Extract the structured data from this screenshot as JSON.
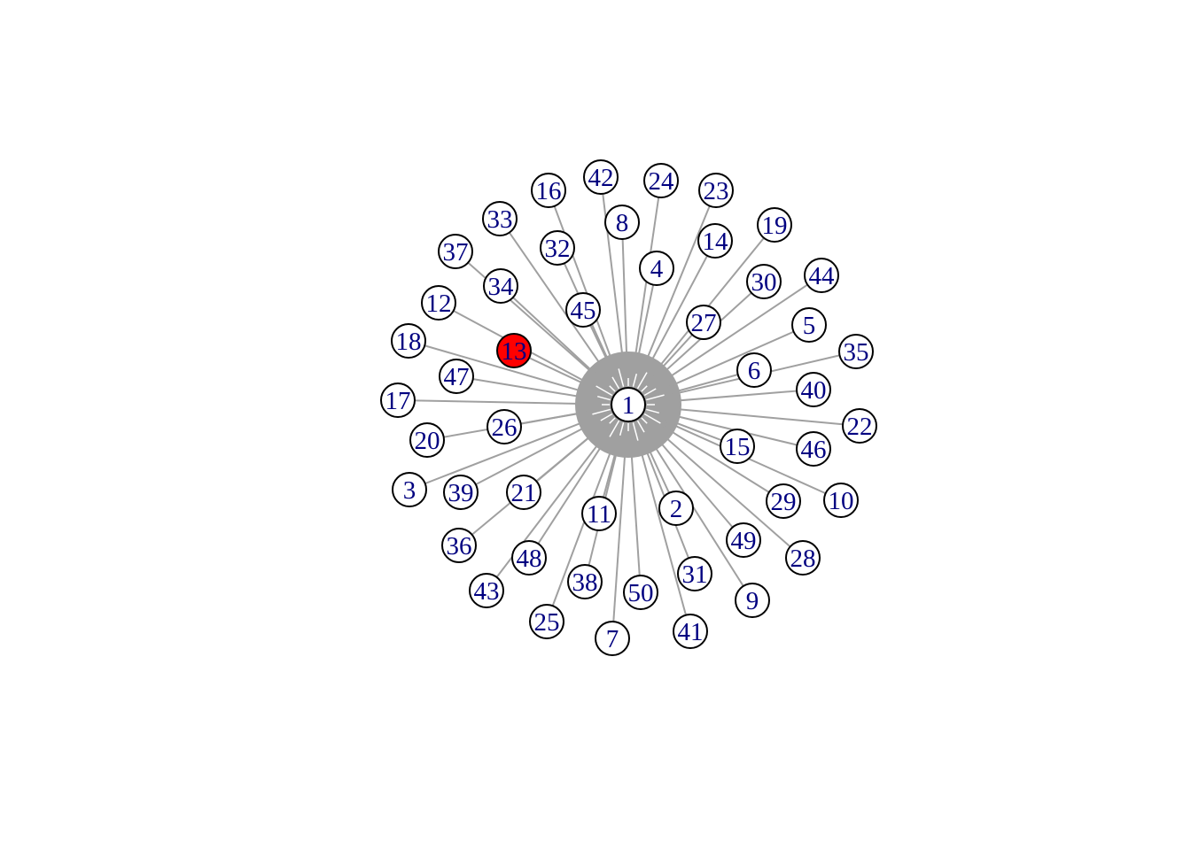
{
  "graph": {
    "type": "star",
    "center": "1",
    "highlighted": "13",
    "nodes": [
      "1",
      "2",
      "3",
      "4",
      "5",
      "6",
      "7",
      "8",
      "9",
      "10",
      "11",
      "12",
      "13",
      "14",
      "15",
      "16",
      "17",
      "18",
      "19",
      "20",
      "21",
      "22",
      "23",
      "24",
      "25",
      "26",
      "27",
      "28",
      "29",
      "30",
      "31",
      "32",
      "33",
      "34",
      "35",
      "36",
      "37",
      "38",
      "39",
      "40",
      "41",
      "42",
      "43",
      "44",
      "45",
      "46",
      "47",
      "48",
      "49",
      "50"
    ],
    "edges": [
      [
        "1",
        "2"
      ],
      [
        "1",
        "3"
      ],
      [
        "1",
        "4"
      ],
      [
        "1",
        "5"
      ],
      [
        "1",
        "6"
      ],
      [
        "1",
        "7"
      ],
      [
        "1",
        "8"
      ],
      [
        "1",
        "9"
      ],
      [
        "1",
        "10"
      ],
      [
        "1",
        "11"
      ],
      [
        "1",
        "12"
      ],
      [
        "1",
        "13"
      ],
      [
        "1",
        "14"
      ],
      [
        "1",
        "15"
      ],
      [
        "1",
        "16"
      ],
      [
        "1",
        "17"
      ],
      [
        "1",
        "18"
      ],
      [
        "1",
        "19"
      ],
      [
        "1",
        "20"
      ],
      [
        "1",
        "21"
      ],
      [
        "1",
        "22"
      ],
      [
        "1",
        "23"
      ],
      [
        "1",
        "24"
      ],
      [
        "1",
        "25"
      ],
      [
        "1",
        "26"
      ],
      [
        "1",
        "27"
      ],
      [
        "1",
        "28"
      ],
      [
        "1",
        "29"
      ],
      [
        "1",
        "30"
      ],
      [
        "1",
        "31"
      ],
      [
        "1",
        "32"
      ],
      [
        "1",
        "33"
      ],
      [
        "1",
        "34"
      ],
      [
        "1",
        "35"
      ],
      [
        "1",
        "36"
      ],
      [
        "1",
        "37"
      ],
      [
        "1",
        "38"
      ],
      [
        "1",
        "39"
      ],
      [
        "1",
        "40"
      ],
      [
        "1",
        "41"
      ],
      [
        "1",
        "42"
      ],
      [
        "1",
        "43"
      ],
      [
        "1",
        "44"
      ],
      [
        "1",
        "45"
      ],
      [
        "1",
        "46"
      ],
      [
        "1",
        "47"
      ],
      [
        "1",
        "48"
      ],
      [
        "1",
        "49"
      ],
      [
        "1",
        "50"
      ]
    ],
    "colors": {
      "node_fill": "#ffffff",
      "highlight_fill": "#ff0000",
      "label": "#000080",
      "edge": "#a0a0a0",
      "node_border": "#000000"
    }
  }
}
